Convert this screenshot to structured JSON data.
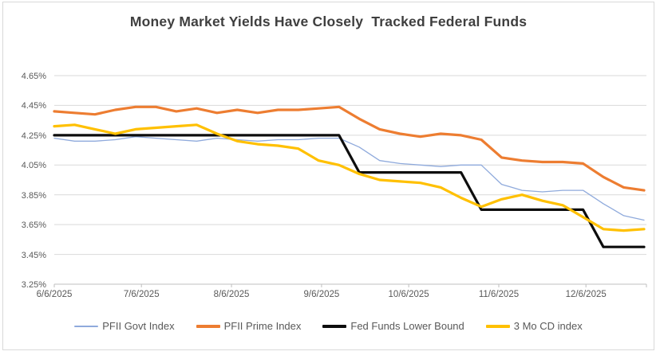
{
  "title": "Money Market Yields Have Closely  Tracked Federal Funds",
  "colors": {
    "background": "#ffffff",
    "frame_border": "#d9d9d9",
    "gridline": "#d9d9d9",
    "axis_line": "#bfbfbf",
    "axis_text": "#595959",
    "title_text": "#3f3f3f",
    "govt_blue": "#8faadc",
    "prime_orange": "#ed7d31",
    "fed_black": "#0d0d0d",
    "cd_yellow": "#ffc000"
  },
  "chart_data": {
    "type": "line",
    "title": "Money Market Yields Have Closely  Tracked Federal Funds",
    "grid": "horizontal",
    "legend_position": "bottom",
    "ylim": [
      3.25,
      4.65
    ],
    "y_tick_step": 0.2,
    "y_tick_labels": [
      "4.65%",
      "4.45%",
      "4.25%",
      "4.05%",
      "3.85%",
      "3.65%",
      "3.45%",
      "3.25%"
    ],
    "x_tick_labels": [
      "6/6/2025",
      "7/6/2025",
      "8/6/2025",
      "9/6/2025",
      "10/6/2025",
      "11/6/2025",
      "12/6/2025"
    ],
    "x_tick_day_offsets": [
      0,
      30,
      61,
      92,
      122,
      153,
      183
    ],
    "x_total_days": 203,
    "x": [
      "6/6/2025",
      "6/13/2025",
      "6/20/2025",
      "6/27/2025",
      "7/4/2025",
      "7/11/2025",
      "7/18/2025",
      "7/25/2025",
      "8/1/2025",
      "8/8/2025",
      "8/15/2025",
      "8/22/2025",
      "8/29/2025",
      "9/5/2025",
      "9/12/2025",
      "9/19/2025",
      "9/26/2025",
      "10/3/2025",
      "10/10/2025",
      "10/17/2025",
      "10/24/2025",
      "10/31/2025",
      "11/7/2025",
      "11/14/2025",
      "11/21/2025",
      "11/28/2025",
      "12/5/2025",
      "12/12/2025",
      "12/19/2025",
      "12/26/2025"
    ],
    "series": [
      {
        "name": "PFII Govt Index",
        "color": "#8faadc",
        "stroke_width": 1.3,
        "values": [
          4.23,
          4.21,
          4.21,
          4.22,
          4.24,
          4.23,
          4.22,
          4.21,
          4.23,
          4.22,
          4.21,
          4.22,
          4.22,
          4.23,
          4.23,
          4.17,
          4.08,
          4.06,
          4.05,
          4.04,
          4.05,
          4.05,
          3.92,
          3.88,
          3.87,
          3.88,
          3.88,
          3.79,
          3.71,
          3.68
        ]
      },
      {
        "name": "PFII Prime Index",
        "color": "#ed7d31",
        "stroke_width": 3.2,
        "values": [
          4.41,
          4.4,
          4.39,
          4.42,
          4.44,
          4.44,
          4.41,
          4.43,
          4.4,
          4.42,
          4.4,
          4.42,
          4.42,
          4.43,
          4.44,
          4.36,
          4.29,
          4.26,
          4.24,
          4.26,
          4.25,
          4.22,
          4.1,
          4.08,
          4.07,
          4.07,
          4.06,
          3.97,
          3.9,
          3.88
        ]
      },
      {
        "name": "Fed Funds Lower Bound",
        "color": "#0d0d0d",
        "stroke_width": 3.2,
        "values": [
          4.25,
          4.25,
          4.25,
          4.25,
          4.25,
          4.25,
          4.25,
          4.25,
          4.25,
          4.25,
          4.25,
          4.25,
          4.25,
          4.25,
          4.25,
          4.0,
          4.0,
          4.0,
          4.0,
          4.0,
          4.0,
          3.75,
          3.75,
          3.75,
          3.75,
          3.75,
          3.75,
          3.5,
          3.5,
          3.5
        ]
      },
      {
        "name": "3 Mo CD index",
        "color": "#ffc000",
        "stroke_width": 3.2,
        "values": [
          4.31,
          4.32,
          4.29,
          4.26,
          4.29,
          4.3,
          4.31,
          4.32,
          4.26,
          4.21,
          4.19,
          4.18,
          4.16,
          4.08,
          4.05,
          3.99,
          3.95,
          3.94,
          3.93,
          3.9,
          3.83,
          3.77,
          3.82,
          3.85,
          3.81,
          3.78,
          3.7,
          3.62,
          3.61,
          3.62
        ]
      }
    ]
  }
}
